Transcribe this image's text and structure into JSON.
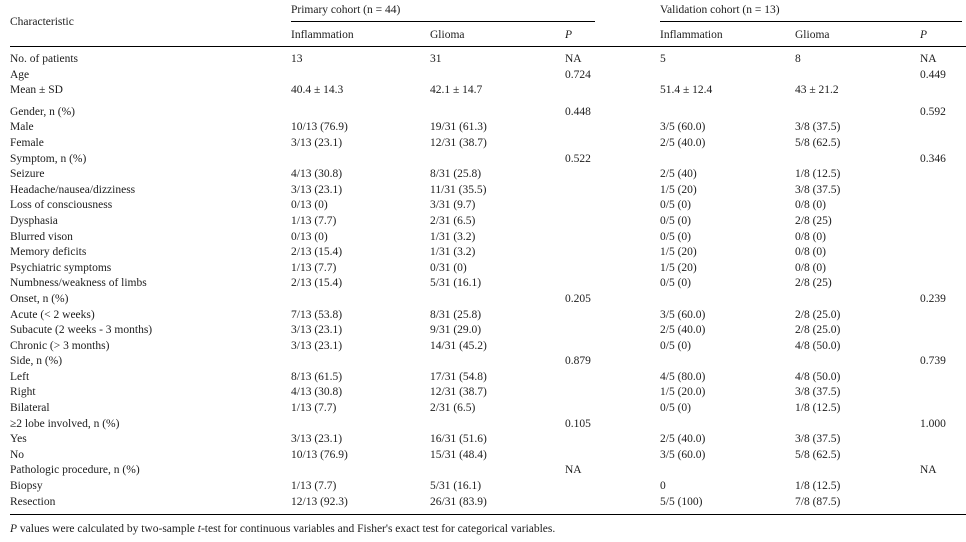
{
  "page": {
    "background_color": "#ffffff",
    "text_color": "#1c1c1c",
    "rule_color": "#000000"
  },
  "table": {
    "header": {
      "characteristic_label": "Characteristic",
      "groups": [
        {
          "label": "Primary cohort (n = 44)",
          "columns": [
            "Inflammation",
            "Glioma",
            "P"
          ]
        },
        {
          "label": "Validation cohort (n = 13)",
          "columns": [
            "Inflammation",
            "Glioma",
            "P"
          ]
        }
      ]
    },
    "rows": [
      {
        "label": "No. of patients",
        "cells": [
          "13",
          "31",
          "NA",
          "5",
          "8",
          "NA"
        ]
      },
      {
        "label": "Age",
        "cells": [
          "",
          "",
          "0.724",
          "",
          "",
          "0.449"
        ]
      },
      {
        "label": "Mean ± SD",
        "cells": [
          "40.4 ± 14.3",
          "42.1 ± 14.7",
          "",
          "51.4 ± 12.4",
          "43 ± 21.2",
          ""
        ]
      },
      {
        "label": "Gender, n (%)",
        "spacer_before": true,
        "cells": [
          "",
          "",
          "0.448",
          "",
          "",
          "0.592"
        ]
      },
      {
        "label": "Male",
        "cells": [
          "10/13 (76.9)",
          "19/31 (61.3)",
          "",
          "3/5 (60.0)",
          "3/8 (37.5)",
          ""
        ]
      },
      {
        "label": "Female",
        "cells": [
          "3/13 (23.1)",
          "12/31 (38.7)",
          "",
          "2/5 (40.0)",
          "5/8 (62.5)",
          ""
        ]
      },
      {
        "label": "Symptom, n (%)",
        "cells": [
          "",
          "",
          "0.522",
          "",
          "",
          "0.346"
        ]
      },
      {
        "label": "Seizure",
        "cells": [
          "4/13 (30.8)",
          "8/31 (25.8)",
          "",
          "2/5 (40)",
          "1/8 (12.5)",
          ""
        ]
      },
      {
        "label": "Headache/nausea/dizziness",
        "cells": [
          "3/13 (23.1)",
          "11/31 (35.5)",
          "",
          "1/5 (20)",
          "3/8 (37.5)",
          ""
        ]
      },
      {
        "label": "Loss of consciousness",
        "cells": [
          "0/13 (0)",
          "3/31 (9.7)",
          "",
          "0/5 (0)",
          "0/8 (0)",
          ""
        ]
      },
      {
        "label": "Dysphasia",
        "cells": [
          "1/13 (7.7)",
          "2/31 (6.5)",
          "",
          "0/5 (0)",
          "2/8 (25)",
          ""
        ]
      },
      {
        "label": "Blurred vison",
        "cells": [
          "0/13 (0)",
          "1/31 (3.2)",
          "",
          "0/5 (0)",
          "0/8 (0)",
          ""
        ]
      },
      {
        "label": "Memory deficits",
        "cells": [
          "2/13 (15.4)",
          "1/31 (3.2)",
          "",
          "1/5 (20)",
          "0/8 (0)",
          ""
        ]
      },
      {
        "label": "Psychiatric symptoms",
        "cells": [
          "1/13 (7.7)",
          "0/31 (0)",
          "",
          "1/5 (20)",
          "0/8 (0)",
          ""
        ]
      },
      {
        "label": "Numbness/weakness of limbs",
        "cells": [
          "2/13 (15.4)",
          "5/31 (16.1)",
          "",
          "0/5 (0)",
          "2/8 (25)",
          ""
        ]
      },
      {
        "label": "Onset, n (%)",
        "cells": [
          "",
          "",
          "0.205",
          "",
          "",
          "0.239"
        ]
      },
      {
        "label": "Acute (< 2 weeks)",
        "cells": [
          "7/13 (53.8)",
          "8/31 (25.8)",
          "",
          "3/5 (60.0)",
          "2/8 (25.0)",
          ""
        ]
      },
      {
        "label": "Subacute (2 weeks - 3 months)",
        "cells": [
          "3/13 (23.1)",
          "9/31 (29.0)",
          "",
          "2/5 (40.0)",
          "2/8 (25.0)",
          ""
        ]
      },
      {
        "label": "Chronic (> 3 months)",
        "cells": [
          "3/13 (23.1)",
          "14/31 (45.2)",
          "",
          "0/5 (0)",
          "4/8 (50.0)",
          ""
        ]
      },
      {
        "label": "Side, n (%)",
        "cells": [
          "",
          "",
          "0.879",
          "",
          "",
          "0.739"
        ]
      },
      {
        "label": "Left",
        "cells": [
          "8/13 (61.5)",
          "17/31 (54.8)",
          "",
          "4/5 (80.0)",
          "4/8 (50.0)",
          ""
        ]
      },
      {
        "label": "Right",
        "cells": [
          "4/13 (30.8)",
          "12/31 (38.7)",
          "",
          "1/5 (20.0)",
          "3/8 (37.5)",
          ""
        ]
      },
      {
        "label": "Bilateral",
        "cells": [
          "1/13 (7.7)",
          "2/31 (6.5)",
          "",
          "0/5 (0)",
          "1/8 (12.5)",
          ""
        ]
      },
      {
        "label": "≥2 lobe involved, n (%)",
        "cells": [
          "",
          "",
          "0.105",
          "",
          "",
          "1.000"
        ]
      },
      {
        "label": "Yes",
        "cells": [
          "3/13 (23.1)",
          "16/31 (51.6)",
          "",
          "2/5 (40.0)",
          "3/8 (37.5)",
          ""
        ]
      },
      {
        "label": "No",
        "cells": [
          "10/13 (76.9)",
          "15/31 (48.4)",
          "",
          "3/5 (60.0)",
          "5/8 (62.5)",
          ""
        ]
      },
      {
        "label": "Pathologic procedure, n (%)",
        "cells": [
          "",
          "",
          "NA",
          "",
          "",
          "NA"
        ]
      },
      {
        "label": "Biopsy",
        "cells": [
          "1/13 (7.7)",
          "5/31 (16.1)",
          "",
          "0",
          "1/8 (12.5)",
          ""
        ]
      },
      {
        "label": "Resection",
        "cells": [
          "12/13 (92.3)",
          "26/31 (83.9)",
          "",
          "5/5 (100)",
          "7/8 (87.5)",
          ""
        ]
      }
    ],
    "footnote_segments": [
      {
        "text": "P",
        "italic": true
      },
      {
        "text": " values were calculated by two-sample ",
        "italic": false
      },
      {
        "text": "t",
        "italic": true
      },
      {
        "text": "-test for continuous variables and Fisher's exact test for categorical variables.",
        "italic": false
      }
    ]
  }
}
